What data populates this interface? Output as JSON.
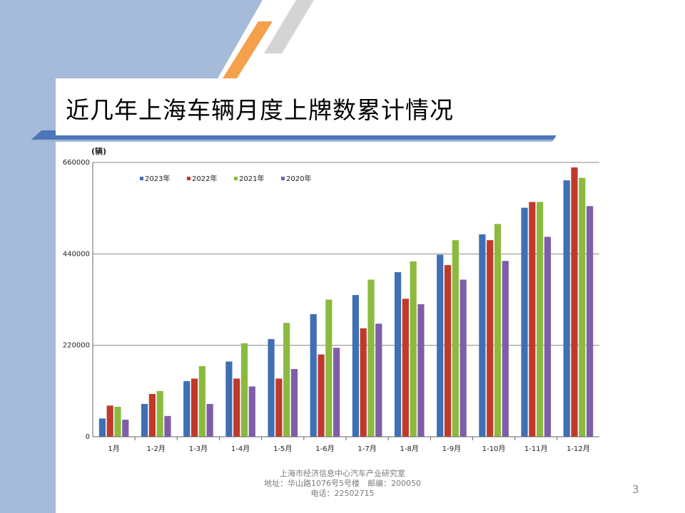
{
  "slide": {
    "title": "近几年上海车辆月度上牌数累计情况",
    "page_number": "3",
    "colors": {
      "band": "#a6bad9",
      "accent_orange": "#f5a04a",
      "rule_blue": "#4c76b8"
    }
  },
  "footer": {
    "line1": "上海市经济信息中心汽车产业研究室",
    "line2": "地址：华山路1076号5号楼　邮编：200050",
    "line3": "电话：22502715"
  },
  "chart_data": {
    "type": "bar",
    "unit_label": "(辆)",
    "categories": [
      "1月",
      "1-2月",
      "1-3月",
      "1-4月",
      "1-5月",
      "1-6月",
      "1-7月",
      "1-8月",
      "1-9月",
      "1-10月",
      "1-11月",
      "1-12月"
    ],
    "series": [
      {
        "name": "2023年",
        "color": "#3f6fb5",
        "values": [
          44000,
          79000,
          134000,
          181000,
          235000,
          295000,
          341000,
          396000,
          438000,
          487000,
          551000,
          617000
        ]
      },
      {
        "name": "2022年",
        "color": "#c0392b",
        "values": [
          75000,
          103000,
          140000,
          140000,
          140000,
          198000,
          261000,
          332000,
          413000,
          473000,
          565000,
          648000
        ]
      },
      {
        "name": "2021年",
        "color": "#8cba3f",
        "values": [
          72000,
          110000,
          170000,
          225000,
          274000,
          330000,
          378000,
          422000,
          473000,
          512000,
          565000,
          623000
        ]
      },
      {
        "name": "2020年",
        "color": "#7e5ea8",
        "values": [
          41000,
          50000,
          79000,
          121000,
          163000,
          214000,
          272000,
          319000,
          378000,
          423000,
          481000,
          555000
        ]
      }
    ],
    "yticks": [
      "0",
      "220000",
      "440000",
      "660000"
    ],
    "ylim": [
      0,
      660000
    ],
    "grid": true,
    "legend_position": "top-left"
  }
}
